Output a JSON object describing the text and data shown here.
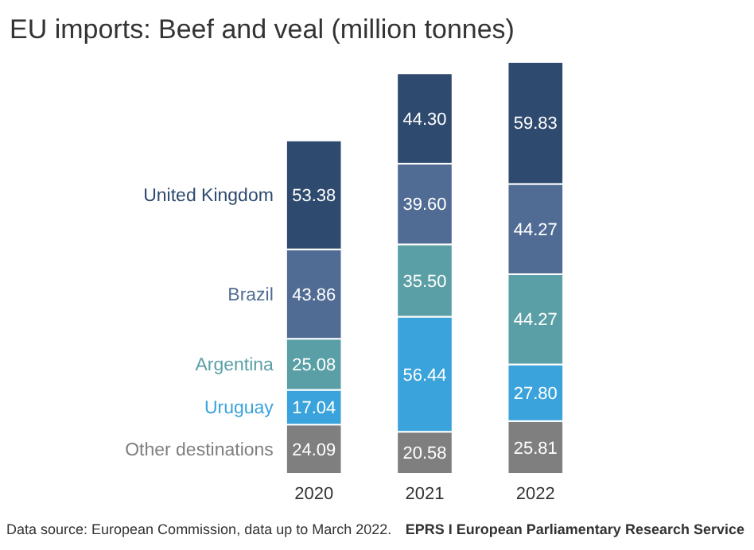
{
  "chart_data": {
    "type": "bar",
    "stacked": true,
    "legend": false,
    "title": "EU imports: Beef and veal (million tonnes)",
    "categories": [
      "2020",
      "2021",
      "2022"
    ],
    "series": [
      {
        "name": "Other destinations",
        "color": "#7f7f7f",
        "values": [
          24.09,
          20.58,
          25.81
        ],
        "value_labels": [
          "24.09",
          "20.58",
          "25.81"
        ]
      },
      {
        "name": "Uruguay",
        "color": "#3aa3dc",
        "values": [
          17.04,
          56.44,
          27.8
        ],
        "value_labels": [
          "17.04",
          "56.44",
          "27.80"
        ]
      },
      {
        "name": "Argentina",
        "color": "#5b9fa6",
        "values": [
          25.08,
          35.5,
          44.27
        ],
        "value_labels": [
          "25.08",
          "35.50",
          "44.27"
        ]
      },
      {
        "name": "Brazil",
        "color": "#516c94",
        "values": [
          43.86,
          39.6,
          44.27
        ],
        "value_labels": [
          "43.86",
          "39.60",
          "44.27"
        ]
      },
      {
        "name": "United Kingdom",
        "color": "#2e4a6e",
        "values": [
          53.38,
          44.3,
          59.83
        ],
        "value_labels": [
          "53.38",
          "44.30",
          "59.83"
        ]
      }
    ],
    "annotations": [
      "Data source: European Commission, data up to March 2022.",
      "EPRS I European Parliamentary Research Service"
    ]
  }
}
